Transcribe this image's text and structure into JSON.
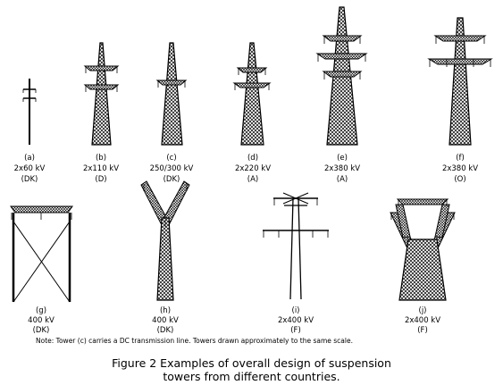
{
  "towers": [
    {
      "letter": "(a)",
      "voltage": "2x60 kV",
      "country": "(DK)"
    },
    {
      "letter": "(b)",
      "voltage": "2x110 kV",
      "country": "(D)"
    },
    {
      "letter": "(c)",
      "voltage": "250/300 kV",
      "country": "(DK)"
    },
    {
      "letter": "(d)",
      "voltage": "2x220 kV",
      "country": "(A)"
    },
    {
      "letter": "(e)",
      "voltage": "2x380 kV",
      "country": "(A)"
    },
    {
      "letter": "(f)",
      "voltage": "2x380 kV",
      "country": "(O)"
    },
    {
      "letter": "(g)",
      "voltage": "400 kV",
      "country": "(DK)"
    },
    {
      "letter": "(h)",
      "voltage": "400 kV",
      "country": "(DK)"
    },
    {
      "letter": "(i)",
      "voltage": "2x400 kV",
      "country": "(F)"
    },
    {
      "letter": "(j)",
      "voltage": "2x400 kV",
      "country": "(F)"
    }
  ],
  "note": "Note: Tower (c) carries a DC transmission line. Towers drawn approximately to the same scale.",
  "caption": {
    "line1": "Figure 2  Examples of overall design of suspension",
    "line2": "towers from different countries."
  }
}
